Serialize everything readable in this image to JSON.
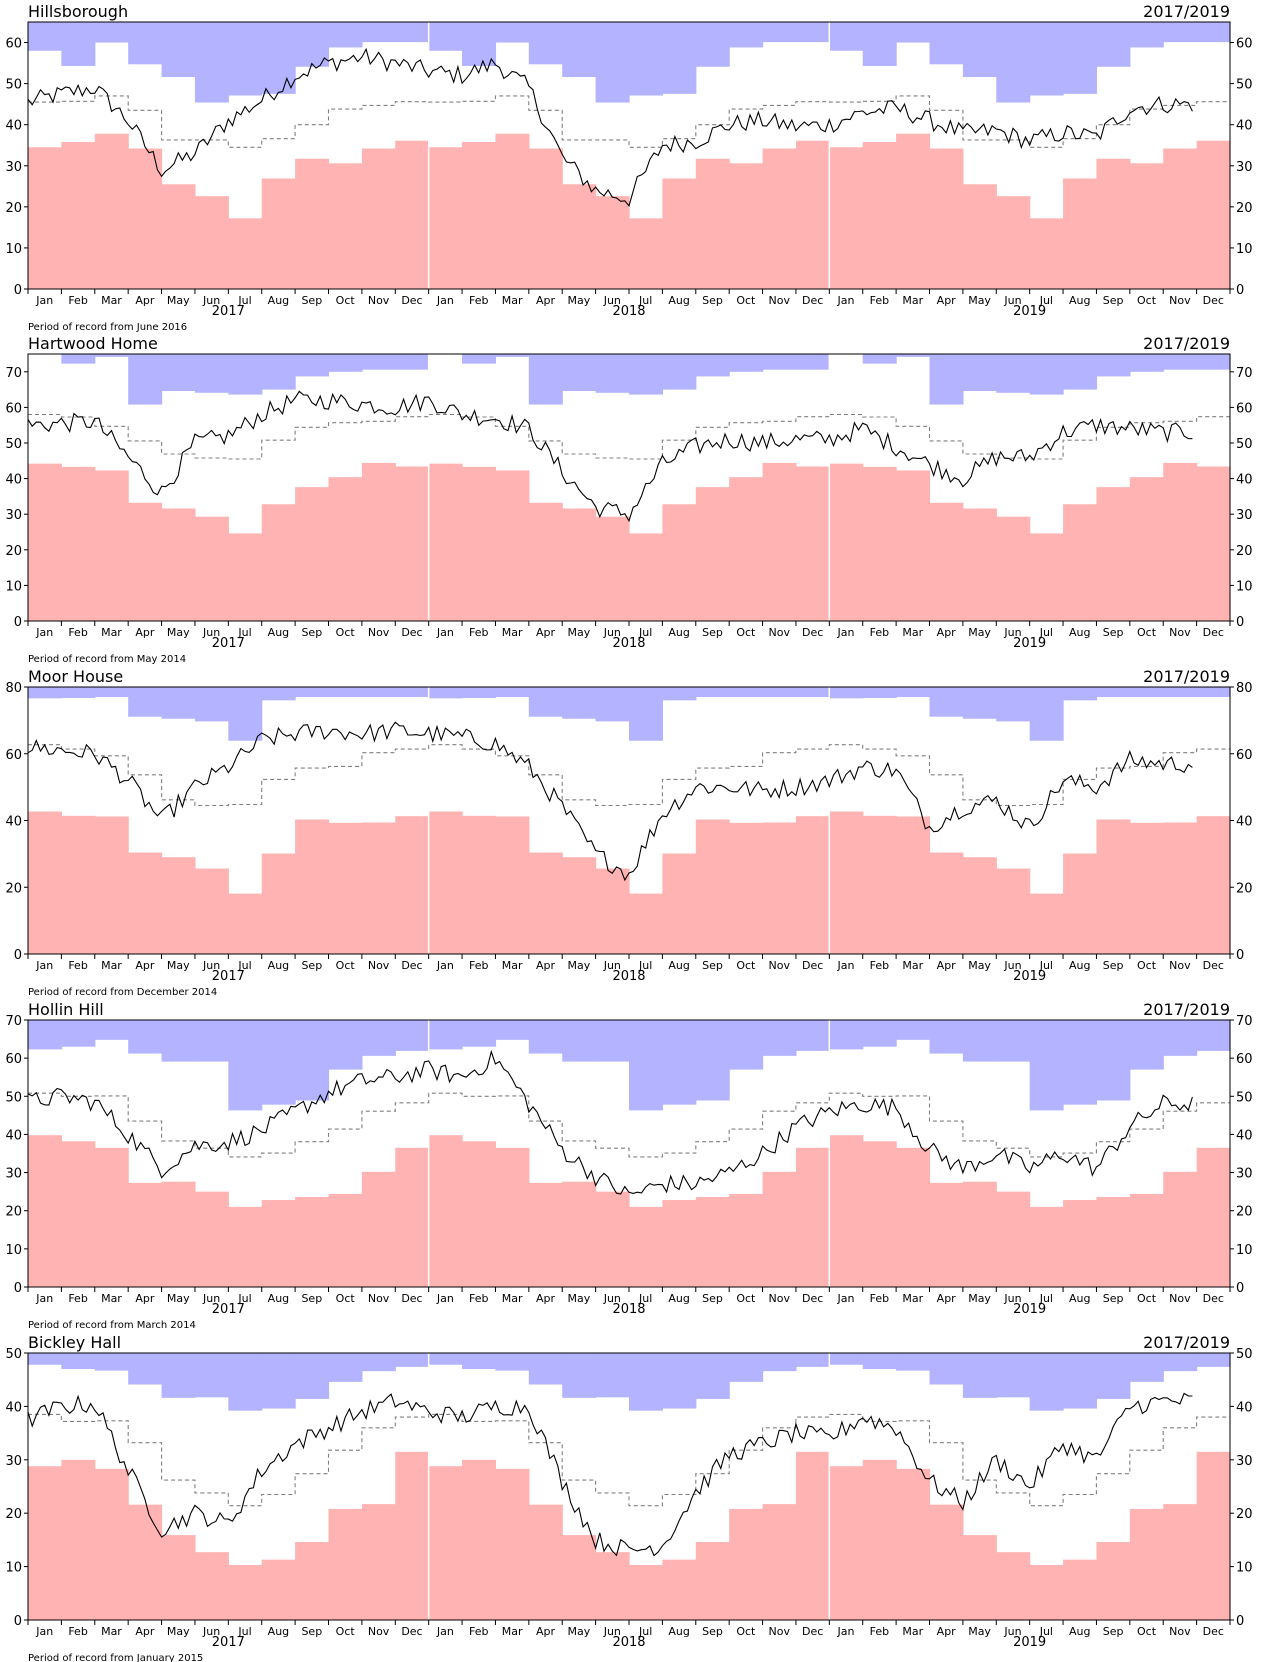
{
  "months": [
    "Jan",
    "Feb",
    "Mar",
    "Apr",
    "May",
    "Jun",
    "Jul",
    "Aug",
    "Sep",
    "Oct",
    "Nov",
    "Dec"
  ],
  "years": [
    "2017",
    "2018",
    "2019"
  ],
  "colors": {
    "low_band": "#ffb3b3",
    "high_band": "#b3b3ff",
    "series": "#000000",
    "median": "#808080"
  },
  "chart_data": [
    {
      "type": "area",
      "title": "Hillsborough",
      "period_label": "2017/2019",
      "footnote": "Period of record from June 2016",
      "ylim": [
        0,
        65
      ],
      "yticks": [
        0,
        10,
        20,
        30,
        40,
        50,
        60
      ],
      "low_band": [
        34.5,
        35.8,
        37.8,
        34.2,
        25.5,
        22.6,
        17.2,
        26.9,
        31.7,
        30.6,
        34.2,
        36.1
      ],
      "median": [
        45.5,
        45.7,
        47.0,
        43.5,
        36.3,
        36.3,
        34.5,
        36.6,
        40.0,
        43.8,
        44.7,
        45.6
      ],
      "high_band": [
        58.0,
        54.3,
        60.0,
        54.7,
        51.6,
        45.4,
        47.1,
        47.5,
        54.1,
        58.8,
        60.1,
        60.1
      ],
      "series": {
        "name": "",
        "monthly_means": [
          [
            45.5,
            47.5,
            49.0,
            41.0,
            29.0,
            33.0,
            41.0,
            46.0,
            52.0,
            55.0,
            56.5,
            55.0
          ],
          [
            53.0,
            52.0,
            55.0,
            49.0,
            32.0,
            24.0,
            22.0,
            35.0,
            36.0,
            40.0,
            41.0,
            39.5
          ],
          [
            40.0,
            43.0,
            44.0,
            41.0,
            38.0,
            38.5,
            36.0,
            38.0,
            37.0,
            44.0,
            45.0
          ]
        ]
      }
    },
    {
      "type": "area",
      "title": "Hartwood Home",
      "period_label": "2017/2019",
      "footnote": "Period of record from May 2014",
      "ylim": [
        0,
        75
      ],
      "yticks": [
        0,
        10,
        20,
        30,
        40,
        50,
        60,
        70
      ],
      "low_band": [
        44.2,
        43.3,
        42.3,
        33.2,
        31.6,
        29.3,
        24.6,
        32.8,
        37.6,
        40.4,
        44.4,
        43.4
      ],
      "median": [
        58.0,
        57.3,
        54.7,
        50.6,
        46.9,
        45.8,
        45.5,
        50.8,
        54.4,
        55.7,
        56.1,
        57.4
      ],
      "high_band": [
        75.0,
        72.3,
        74.2,
        60.8,
        64.6,
        64.1,
        63.6,
        65.0,
        68.7,
        70.0,
        70.6,
        70.6
      ],
      "series": {
        "name": "",
        "monthly_means": [
          [
            55.0,
            55.5,
            56.0,
            46.0,
            36.0,
            50.0,
            52.0,
            58.0,
            62.0,
            62.0,
            61.0,
            60.0
          ],
          [
            62.0,
            58.0,
            57.0,
            54.0,
            42.0,
            32.0,
            30.0,
            44.0,
            49.0,
            51.0,
            50.0,
            51.0
          ],
          [
            51.0,
            54.0,
            49.0,
            44.0,
            40.0,
            46.0,
            46.0,
            53.0,
            55.0,
            54.0,
            53.0
          ]
        ]
      }
    },
    {
      "type": "area",
      "title": "Moor House",
      "period_label": "2017/2019",
      "footnote": "Period of record from December 2014",
      "ylim": [
        0,
        80
      ],
      "yticks": [
        0,
        20,
        40,
        60,
        80
      ],
      "low_band": [
        42.7,
        41.4,
        41.2,
        30.4,
        29.0,
        25.6,
        18.1,
        30.1,
        40.3,
        39.3,
        39.4,
        41.3
      ],
      "median": [
        62.7,
        61.4,
        59.4,
        53.7,
        46.2,
        44.5,
        44.8,
        52.3,
        55.7,
        56.2,
        60.3,
        61.4
      ],
      "high_band": [
        76.6,
        76.7,
        77.0,
        71.1,
        70.5,
        69.7,
        63.9,
        76.0,
        77.0,
        77.0,
        77.0,
        77.0
      ],
      "series": {
        "name": "",
        "monthly_means": [
          [
            62.0,
            61.0,
            60.0,
            52.0,
            40.0,
            50.0,
            56.0,
            64.0,
            66.0,
            67.0,
            66.0,
            67.0
          ],
          [
            66.0,
            65.0,
            63.0,
            56.0,
            44.0,
            30.0,
            24.0,
            42.0,
            50.0,
            50.0,
            49.0,
            50.0
          ],
          [
            52.0,
            56.0,
            55.0,
            38.0,
            44.0,
            46.0,
            38.0,
            52.0,
            50.0,
            58.0,
            57.0
          ]
        ]
      }
    },
    {
      "type": "area",
      "title": "Hollin Hill",
      "period_label": "2017/2019",
      "footnote": "Period of record from March 2014",
      "ylim": [
        0,
        70
      ],
      "yticks": [
        0,
        10,
        20,
        30,
        40,
        50,
        60,
        70
      ],
      "low_band": [
        39.8,
        38.2,
        36.5,
        27.3,
        27.6,
        25.0,
        21.0,
        22.8,
        23.6,
        24.4,
        30.2,
        36.5
      ],
      "median": [
        50.8,
        50.0,
        50.1,
        43.5,
        38.3,
        36.4,
        34.1,
        35.1,
        38.1,
        41.4,
        46.1,
        48.3
      ],
      "high_band": [
        62.3,
        63.0,
        64.8,
        61.2,
        59.1,
        59.1,
        46.3,
        47.8,
        48.9,
        57.0,
        60.6,
        61.9
      ],
      "series": {
        "name": "",
        "monthly_means": [
          [
            48.5,
            50.0,
            48.5,
            40.0,
            31.0,
            37.0,
            38.0,
            41.0,
            46.0,
            51.0,
            54.0,
            55.0
          ],
          [
            57.0,
            55.0,
            60.0,
            48.0,
            36.0,
            29.0,
            24.0,
            27.0,
            27.0,
            30.0,
            35.0,
            42.0
          ],
          [
            46.0,
            48.0,
            47.0,
            36.0,
            31.0,
            35.0,
            31.0,
            35.0,
            31.0,
            42.0,
            48.0
          ]
        ]
      }
    },
    {
      "type": "area",
      "title": "Bickley Hall",
      "period_label": "2017/2019",
      "footnote": "Period of record from January 2015",
      "ylim": [
        0,
        50
      ],
      "yticks": [
        0,
        10,
        20,
        30,
        40,
        50
      ],
      "low_band": [
        28.8,
        30.0,
        28.3,
        21.6,
        15.9,
        12.7,
        10.3,
        11.3,
        14.6,
        20.8,
        21.7,
        31.5
      ],
      "median": [
        38.5,
        37.2,
        37.3,
        33.2,
        26.2,
        23.8,
        21.4,
        23.5,
        27.4,
        31.8,
        36.0,
        38.0
      ],
      "high_band": [
        47.8,
        47.0,
        46.7,
        44.1,
        41.6,
        41.7,
        39.2,
        39.6,
        41.4,
        44.6,
        46.6,
        47.4
      ],
      "series": {
        "name": "",
        "monthly_means": [
          [
            37.5,
            40.0,
            40.5,
            28.0,
            17.0,
            20.0,
            18.0,
            28.0,
            33.0,
            36.0,
            39.0,
            41.0
          ],
          [
            39.0,
            38.0,
            40.0,
            40.0,
            26.0,
            15.0,
            13.0,
            14.0,
            24.0,
            31.0,
            33.0,
            35.0
          ],
          [
            34.0,
            38.0,
            36.0,
            26.0,
            22.0,
            30.0,
            25.0,
            33.0,
            30.0,
            40.0,
            41.0
          ]
        ]
      }
    }
  ]
}
